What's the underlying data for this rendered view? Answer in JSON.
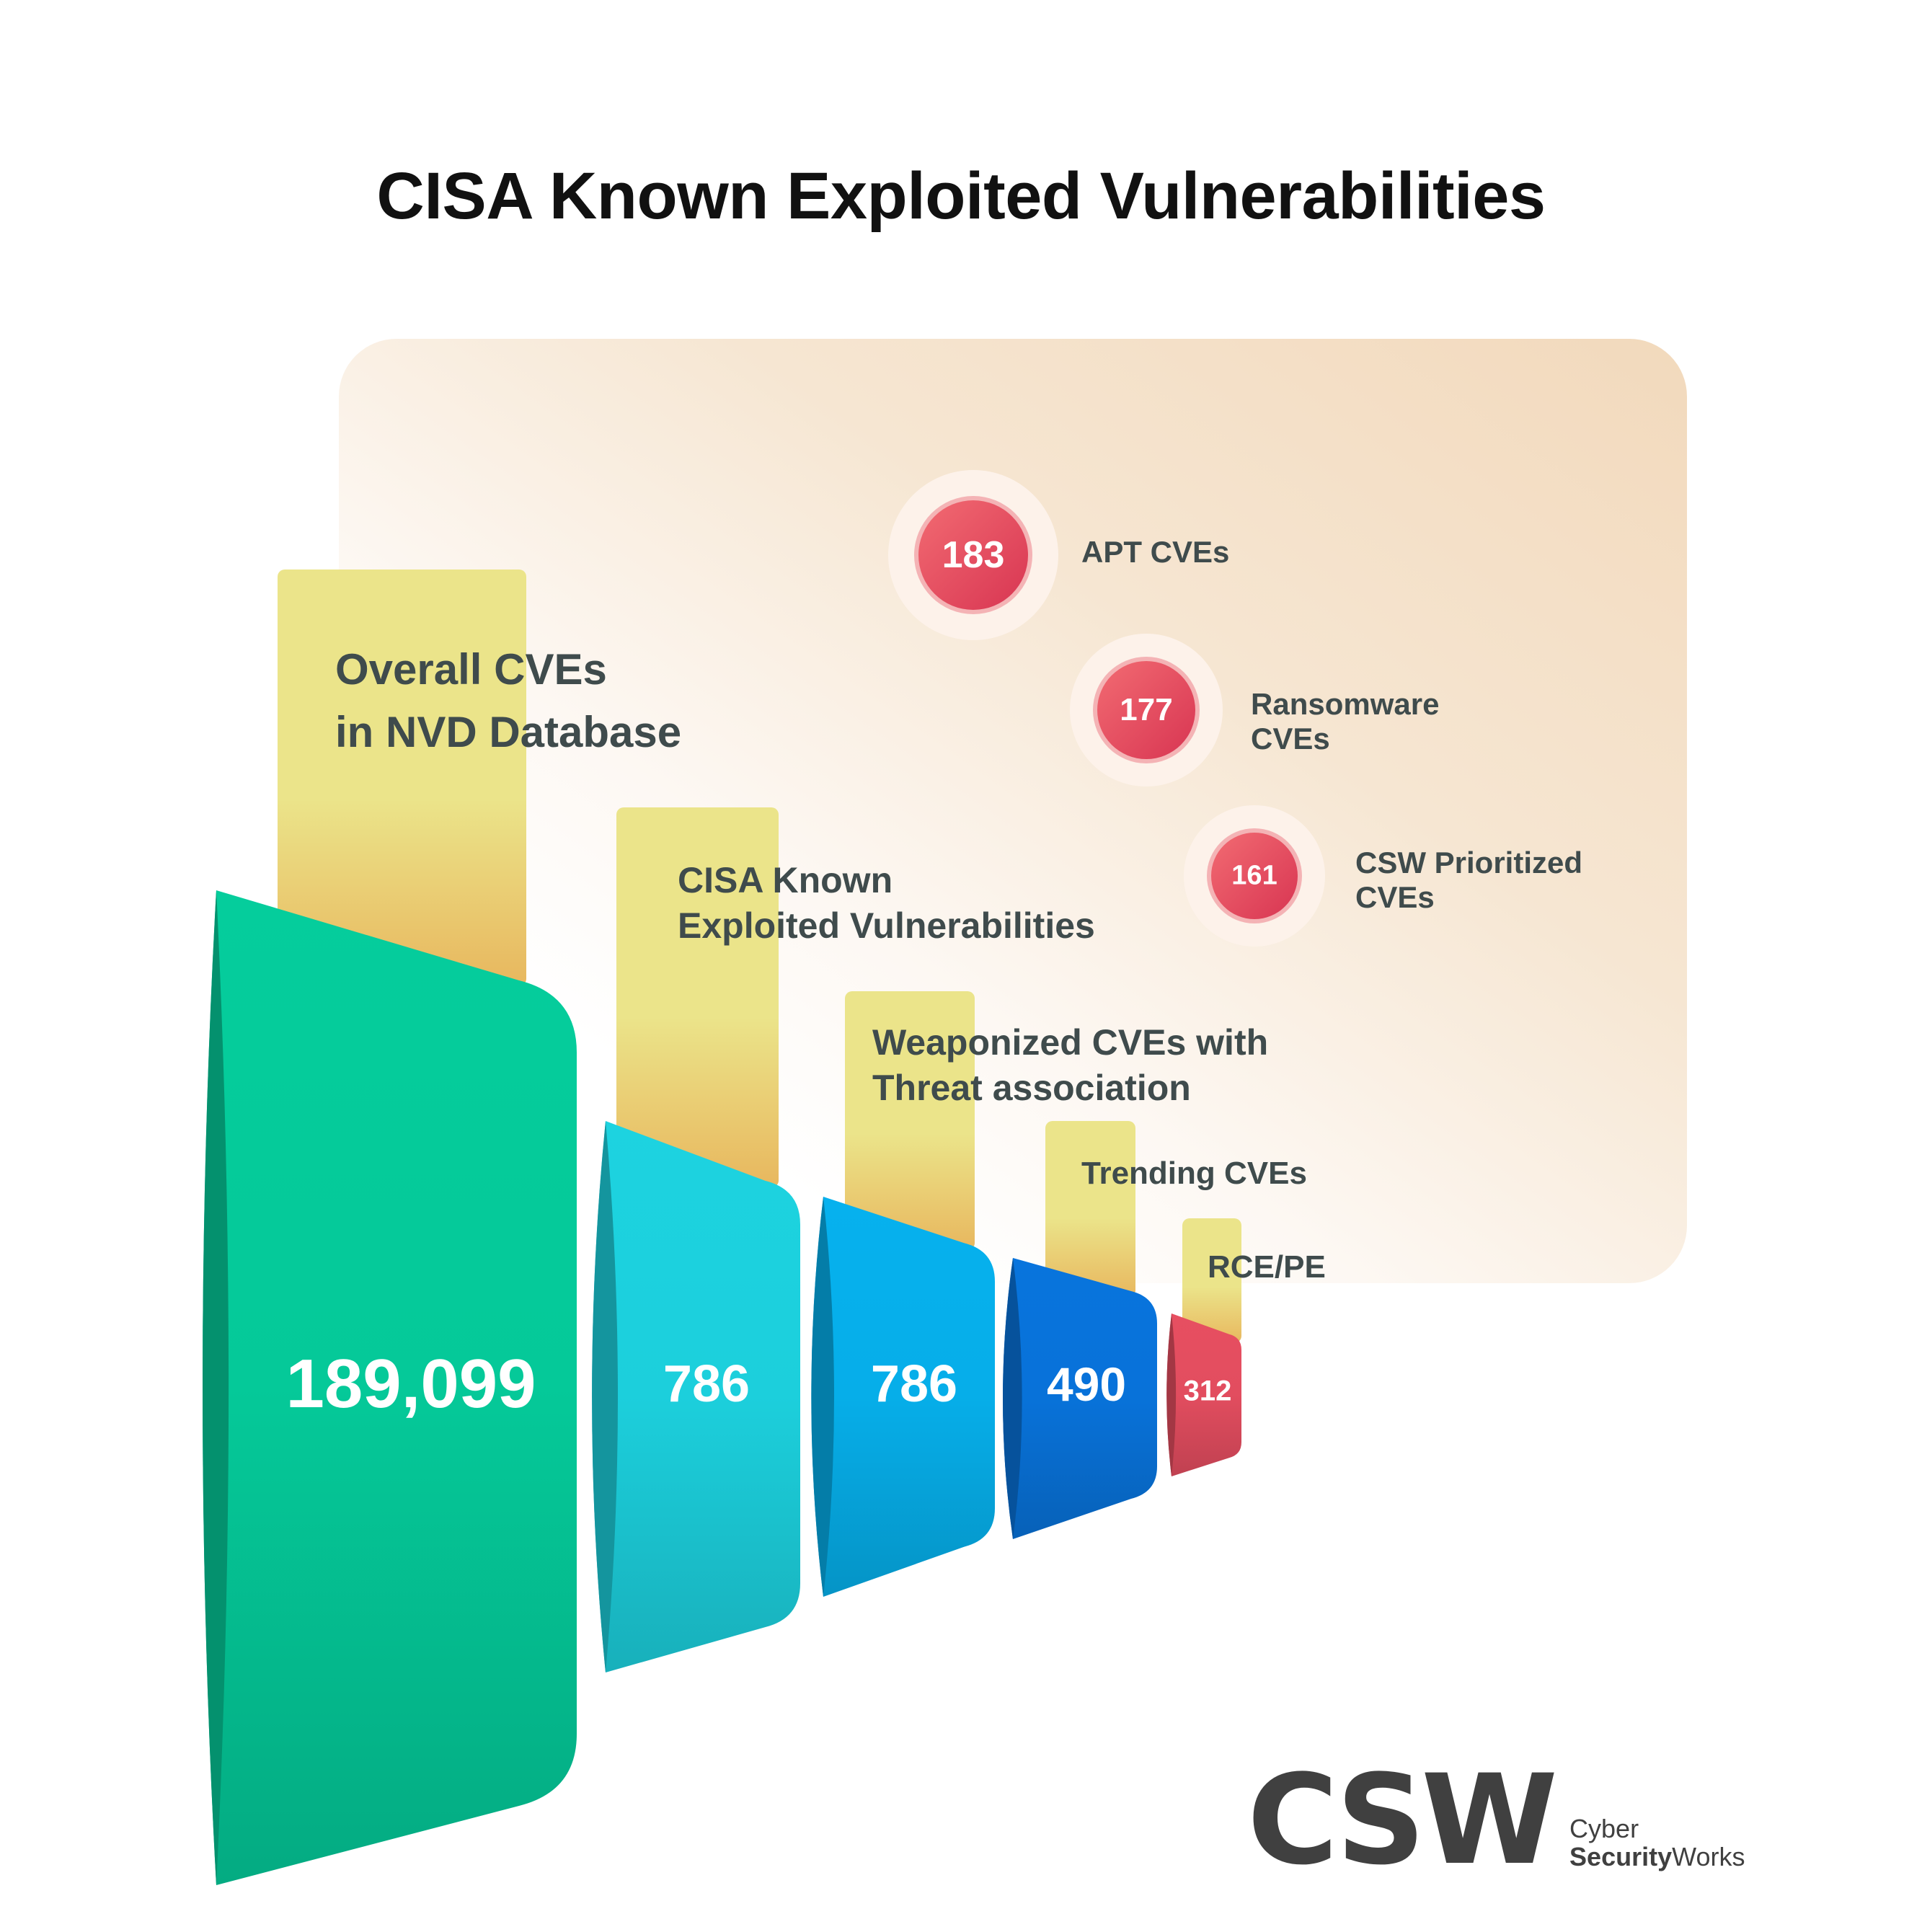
{
  "title": "CISA Known Exploited Vulnerabilities",
  "chart_data": {
    "type": "funnel",
    "title": "CISA Known Exploited Vulnerabilities",
    "stages": [
      {
        "label": "Overall CVEs\nin NVD Database",
        "value": 189099,
        "display": "189,099",
        "color": "#05c999"
      },
      {
        "label": "CISA Known\nExploited Vulnerabilities",
        "value": 786,
        "display": "786",
        "color": "#1ccfdc"
      },
      {
        "label": "Weaponized CVEs with\n Threat association",
        "value": 786,
        "display": "786",
        "color": "#06aee9"
      },
      {
        "label": "Trending CVEs",
        "value": 490,
        "display": "490",
        "color": "#0872d9"
      },
      {
        "label": "RCE/PE",
        "value": 312,
        "display": "312",
        "color": "#e24d5f"
      }
    ],
    "breakdown": [
      {
        "label": "APT CVEs",
        "value": 183,
        "display": "183"
      },
      {
        "label": "Ransomware\nCVEs",
        "value": 177,
        "display": "177"
      },
      {
        "label": "CSW Prioritized\nCVEs",
        "value": 161,
        "display": "161"
      }
    ]
  },
  "colors": {
    "title": "#111111",
    "label": "#3f4b4c",
    "tab_top": "#ebe48a",
    "tab_bottom": "#e8b75e",
    "bubble": "#e2455c",
    "logo": "#404040"
  },
  "logo": {
    "mark": "CSW",
    "line1": "Cyber",
    "line2_bold": "Security",
    "line2_rest": "Works"
  }
}
